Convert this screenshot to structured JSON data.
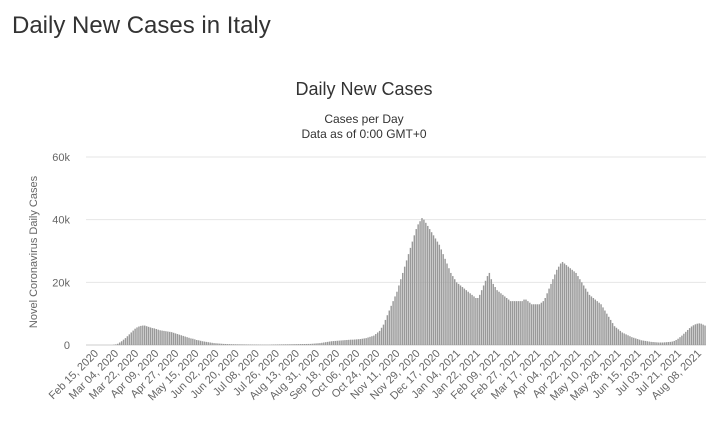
{
  "page": {
    "heading": "Daily New Cases in Italy"
  },
  "chart_data": {
    "type": "bar",
    "title": "Daily New Cases",
    "subtitle_lines": [
      "Cases per Day",
      "Data as of 0:00 GMT+0"
    ],
    "xlabel": "",
    "ylabel": "Novel Coronavirus Daily Cases",
    "ylim": [
      0,
      60000
    ],
    "yticks": [
      {
        "value": 0,
        "label": "0"
      },
      {
        "value": 20000,
        "label": "20k"
      },
      {
        "value": 40000,
        "label": "40k"
      },
      {
        "value": 60000,
        "label": "60k"
      }
    ],
    "grid": true,
    "bar_color": "#999999",
    "x_start_date": "Feb 15, 2020",
    "x_end_date": "Aug 18, 2021",
    "xtick_labels": [
      "Feb 15, 2020",
      "Mar 04, 2020",
      "Mar 22, 2020",
      "Apr 09, 2020",
      "Apr 27, 2020",
      "May 15, 2020",
      "Jun 02, 2020",
      "Jun 20, 2020",
      "Jul 08, 2020",
      "Jul 26, 2020",
      "Aug 13, 2020",
      "Aug 31, 2020",
      "Sep 18, 2020",
      "Oct 06, 2020",
      "Oct 24, 2020",
      "Nov 11, 2020",
      "Nov 29, 2020",
      "Dec 17, 2020",
      "Jan 04, 2021",
      "Jan 22, 2021",
      "Feb 09, 2021",
      "Feb 27, 2021",
      "Mar 17, 2021",
      "Apr 04, 2021",
      "Apr 22, 2021",
      "May 10, 2021",
      "May 28, 2021",
      "Jun 15, 2021",
      "Jul 03, 2021",
      "Jul 21, 2021",
      "Aug 08, 2021"
    ],
    "series": [
      {
        "values": [
          0,
          0,
          0,
          0,
          0,
          0,
          0,
          0,
          0,
          0,
          0,
          0,
          0,
          0,
          100,
          200,
          400,
          800,
          1200,
          1700,
          2200,
          2800,
          3400,
          4000,
          4600,
          5200,
          5600,
          5900,
          6100,
          6200,
          6200,
          6000,
          5800,
          5600,
          5400,
          5300,
          5100,
          4900,
          4700,
          4600,
          4500,
          4400,
          4300,
          4200,
          4100,
          3900,
          3700,
          3500,
          3300,
          3100,
          2900,
          2700,
          2500,
          2300,
          2100,
          2000,
          1800,
          1600,
          1500,
          1350,
          1200,
          1100,
          1000,
          900,
          800,
          700,
          600,
          550,
          500,
          450,
          400,
          350,
          330,
          300,
          280,
          260,
          250,
          240,
          230,
          220,
          210,
          200,
          190,
          180,
          170,
          160,
          150,
          140,
          130,
          120,
          110,
          100,
          100,
          100,
          100,
          100,
          150,
          160,
          170,
          180,
          190,
          200,
          210,
          220,
          230,
          240,
          250,
          260,
          270,
          280,
          290,
          300,
          310,
          320,
          330,
          340,
          350,
          400,
          450,
          500,
          550,
          600,
          700,
          800,
          900,
          1000,
          1100,
          1200,
          1250,
          1300,
          1350,
          1400,
          1450,
          1500,
          1550,
          1600,
          1650,
          1700,
          1700,
          1750,
          1800,
          1850,
          1900,
          2000,
          2100,
          2200,
          2400,
          2600,
          2800,
          3000,
          3500,
          4000,
          4500,
          5500,
          6500,
          8000,
          9500,
          11000,
          12500,
          14000,
          15500,
          17000,
          19000,
          21000,
          23000,
          25000,
          27000,
          29000,
          31000,
          33000,
          35000,
          37000,
          38500,
          39500,
          40500,
          40000,
          39000,
          38000,
          37000,
          36000,
          35000,
          34000,
          33000,
          32000,
          30500,
          29000,
          27500,
          26000,
          24500,
          23000,
          22000,
          21000,
          20000,
          19500,
          19000,
          18500,
          18000,
          17500,
          17000,
          16500,
          16000,
          15500,
          15000,
          15000,
          16000,
          17500,
          19000,
          20500,
          22000,
          23000,
          21000,
          19500,
          18500,
          17500,
          17000,
          16500,
          16000,
          15500,
          15000,
          14500,
          14000,
          14000,
          14000,
          14000,
          14000,
          14000,
          14000,
          14500,
          14500,
          14000,
          13500,
          13000,
          13000,
          13000,
          13000,
          13000,
          13500,
          14000,
          15000,
          16500,
          18000,
          19500,
          21000,
          22500,
          24000,
          25000,
          26000,
          26500,
          26000,
          25500,
          25000,
          24500,
          24000,
          23500,
          23000,
          22000,
          21000,
          20000,
          19000,
          18000,
          17000,
          16000,
          15500,
          15000,
          14500,
          14000,
          13500,
          13000,
          12000,
          11000,
          10000,
          9000,
          8000,
          7000,
          6000,
          5500,
          5000,
          4500,
          4000,
          3700,
          3400,
          3100,
          2800,
          2500,
          2300,
          2100,
          1900,
          1700,
          1500,
          1400,
          1300,
          1200,
          1100,
          1000,
          950,
          900,
          850,
          800,
          800,
          800,
          850,
          900,
          950,
          1000,
          1100,
          1300,
          1600,
          2000,
          2500,
          3000,
          3600,
          4200,
          4800,
          5400,
          5900,
          6300,
          6600,
          6800,
          6900,
          6800,
          6500,
          6200
        ]
      }
    ]
  }
}
